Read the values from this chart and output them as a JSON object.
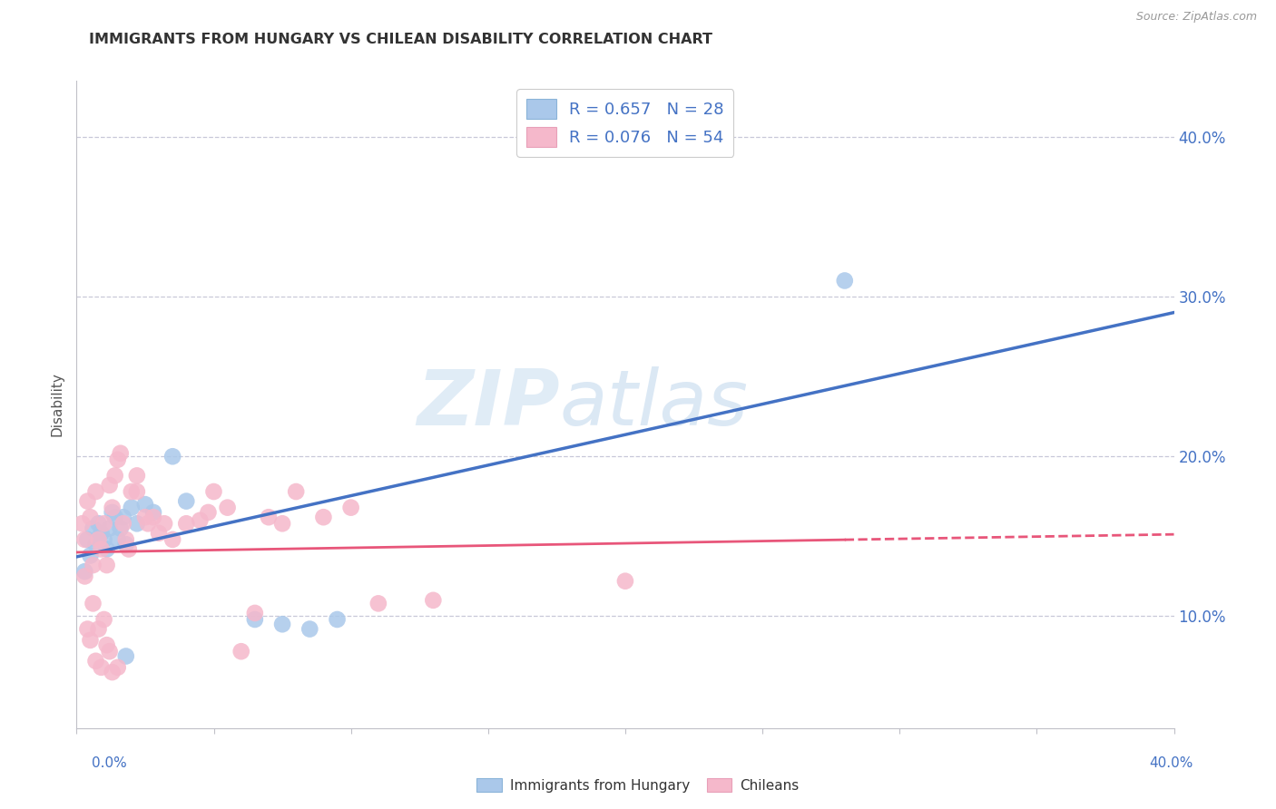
{
  "title": "IMMIGRANTS FROM HUNGARY VS CHILEAN DISABILITY CORRELATION CHART",
  "source": "Source: ZipAtlas.com",
  "ylabel": "Disability",
  "xlim": [
    0.0,
    0.4
  ],
  "ylim": [
    0.03,
    0.435
  ],
  "ytick_values": [
    0.1,
    0.2,
    0.3,
    0.4
  ],
  "legend_r1": "R = 0.657   N = 28",
  "legend_r2": "R = 0.076   N = 54",
  "color_hungary": "#aac8ea",
  "color_chile": "#f5b8cb",
  "trendline_hungary": "#4472c4",
  "trendline_chile": "#e8567a",
  "hungary_scatter": [
    [
      0.003,
      0.128
    ],
    [
      0.004,
      0.148
    ],
    [
      0.005,
      0.138
    ],
    [
      0.006,
      0.155
    ],
    [
      0.007,
      0.145
    ],
    [
      0.008,
      0.158
    ],
    [
      0.009,
      0.152
    ],
    [
      0.01,
      0.148
    ],
    [
      0.011,
      0.142
    ],
    [
      0.012,
      0.155
    ],
    [
      0.013,
      0.165
    ],
    [
      0.014,
      0.162
    ],
    [
      0.015,
      0.148
    ],
    [
      0.016,
      0.155
    ],
    [
      0.017,
      0.162
    ],
    [
      0.018,
      0.145
    ],
    [
      0.02,
      0.168
    ],
    [
      0.022,
      0.158
    ],
    [
      0.025,
      0.17
    ],
    [
      0.028,
      0.165
    ],
    [
      0.035,
      0.2
    ],
    [
      0.04,
      0.172
    ],
    [
      0.065,
      0.098
    ],
    [
      0.075,
      0.095
    ],
    [
      0.085,
      0.092
    ],
    [
      0.095,
      0.098
    ],
    [
      0.28,
      0.31
    ],
    [
      0.018,
      0.075
    ]
  ],
  "chile_scatter": [
    [
      0.002,
      0.158
    ],
    [
      0.003,
      0.148
    ],
    [
      0.003,
      0.125
    ],
    [
      0.004,
      0.172
    ],
    [
      0.004,
      0.092
    ],
    [
      0.005,
      0.162
    ],
    [
      0.005,
      0.085
    ],
    [
      0.006,
      0.132
    ],
    [
      0.006,
      0.108
    ],
    [
      0.007,
      0.178
    ],
    [
      0.007,
      0.072
    ],
    [
      0.008,
      0.148
    ],
    [
      0.008,
      0.092
    ],
    [
      0.009,
      0.142
    ],
    [
      0.009,
      0.068
    ],
    [
      0.01,
      0.158
    ],
    [
      0.01,
      0.098
    ],
    [
      0.011,
      0.132
    ],
    [
      0.011,
      0.082
    ],
    [
      0.012,
      0.182
    ],
    [
      0.012,
      0.078
    ],
    [
      0.013,
      0.168
    ],
    [
      0.013,
      0.065
    ],
    [
      0.014,
      0.188
    ],
    [
      0.015,
      0.198
    ],
    [
      0.015,
      0.068
    ],
    [
      0.016,
      0.202
    ],
    [
      0.017,
      0.158
    ],
    [
      0.018,
      0.148
    ],
    [
      0.019,
      0.142
    ],
    [
      0.02,
      0.178
    ],
    [
      0.022,
      0.188
    ],
    [
      0.022,
      0.178
    ],
    [
      0.025,
      0.162
    ],
    [
      0.026,
      0.158
    ],
    [
      0.028,
      0.162
    ],
    [
      0.03,
      0.152
    ],
    [
      0.032,
      0.158
    ],
    [
      0.035,
      0.148
    ],
    [
      0.04,
      0.158
    ],
    [
      0.045,
      0.16
    ],
    [
      0.048,
      0.165
    ],
    [
      0.05,
      0.178
    ],
    [
      0.055,
      0.168
    ],
    [
      0.06,
      0.078
    ],
    [
      0.065,
      0.102
    ],
    [
      0.07,
      0.162
    ],
    [
      0.075,
      0.158
    ],
    [
      0.08,
      0.178
    ],
    [
      0.09,
      0.162
    ],
    [
      0.1,
      0.168
    ],
    [
      0.11,
      0.108
    ],
    [
      0.13,
      0.11
    ],
    [
      0.2,
      0.122
    ]
  ],
  "watermark_zip": "ZIP",
  "watermark_atlas": "atlas",
  "background_color": "#ffffff",
  "grid_color": "#c8c8d8",
  "axis_color": "#c0c0c8"
}
